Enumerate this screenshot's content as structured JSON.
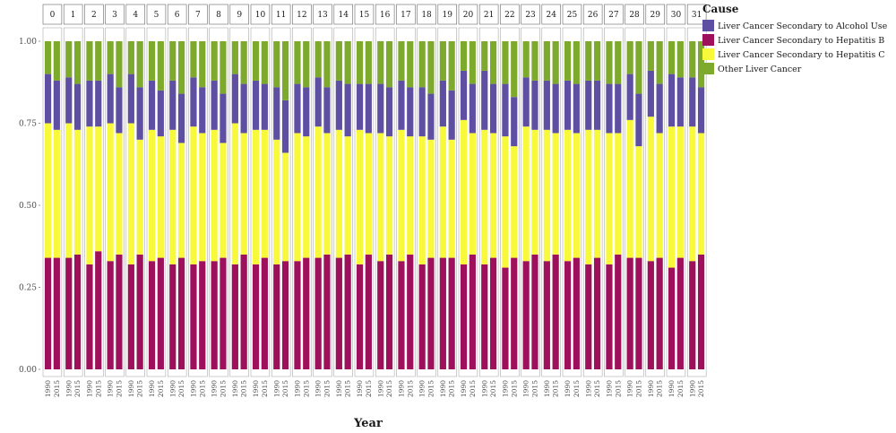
{
  "chart_data": {
    "type": "bar",
    "stacked": true,
    "ylim": [
      0,
      1
    ],
    "y_ticks": [
      "0.00",
      "0.25",
      "0.50",
      "0.75",
      "1.00"
    ],
    "xlabel": "Year",
    "ylabel": "",
    "x_categories": [
      "1990",
      "2015"
    ],
    "facets": [
      "0",
      "1",
      "2",
      "3",
      "4",
      "5",
      "6",
      "7",
      "8",
      "9",
      "10",
      "11",
      "12",
      "13",
      "14",
      "15",
      "16",
      "17",
      "18",
      "19",
      "20",
      "21",
      "22",
      "23",
      "24",
      "25",
      "26",
      "27",
      "28",
      "29",
      "30",
      "31"
    ],
    "legend": {
      "title": "Cause",
      "position": "top-right",
      "entries": [
        {
          "name": "Liver Cancer Secondary to Alcohol Use",
          "color": "#5e4fa2"
        },
        {
          "name": "Liver Cancer Secondary to Hepatitis B",
          "color": "#9e0f5c"
        },
        {
          "name": "Liver Cancer Secondary to Hepatitis C",
          "color": "#f9f93c"
        },
        {
          "name": "Other Liver Cancer",
          "color": "#7daa2d"
        }
      ]
    },
    "stack_order_bottom_to_top": [
      "Liver Cancer Secondary to Hepatitis B",
      "Liver Cancer Secondary to Hepatitis C",
      "Liver Cancer Secondary to Alcohol Use",
      "Other Liver Cancer"
    ],
    "series": [
      {
        "name": "Liver Cancer Secondary to Hepatitis B",
        "values": [
          [
            0.34,
            0.34
          ],
          [
            0.34,
            0.35
          ],
          [
            0.32,
            0.36
          ],
          [
            0.33,
            0.35
          ],
          [
            0.32,
            0.35
          ],
          [
            0.33,
            0.34
          ],
          [
            0.32,
            0.34
          ],
          [
            0.32,
            0.33
          ],
          [
            0.33,
            0.34
          ],
          [
            0.32,
            0.35
          ],
          [
            0.32,
            0.34
          ],
          [
            0.32,
            0.33
          ],
          [
            0.33,
            0.34
          ],
          [
            0.34,
            0.35
          ],
          [
            0.34,
            0.35
          ],
          [
            0.32,
            0.35
          ],
          [
            0.33,
            0.35
          ],
          [
            0.33,
            0.35
          ],
          [
            0.32,
            0.34
          ],
          [
            0.34,
            0.34
          ],
          [
            0.32,
            0.35
          ],
          [
            0.32,
            0.34
          ],
          [
            0.31,
            0.34
          ],
          [
            0.33,
            0.35
          ],
          [
            0.33,
            0.35
          ],
          [
            0.33,
            0.34
          ],
          [
            0.32,
            0.34
          ],
          [
            0.32,
            0.35
          ],
          [
            0.34,
            0.34
          ],
          [
            0.33,
            0.34
          ],
          [
            0.31,
            0.34
          ],
          [
            0.33,
            0.35
          ]
        ]
      },
      {
        "name": "Liver Cancer Secondary to Hepatitis C",
        "values": [
          [
            0.41,
            0.39
          ],
          [
            0.41,
            0.38
          ],
          [
            0.42,
            0.38
          ],
          [
            0.42,
            0.37
          ],
          [
            0.43,
            0.35
          ],
          [
            0.4,
            0.37
          ],
          [
            0.41,
            0.35
          ],
          [
            0.42,
            0.39
          ],
          [
            0.4,
            0.35
          ],
          [
            0.43,
            0.37
          ],
          [
            0.41,
            0.39
          ],
          [
            0.38,
            0.33
          ],
          [
            0.39,
            0.37
          ],
          [
            0.4,
            0.37
          ],
          [
            0.39,
            0.36
          ],
          [
            0.41,
            0.37
          ],
          [
            0.39,
            0.36
          ],
          [
            0.4,
            0.36
          ],
          [
            0.39,
            0.36
          ],
          [
            0.4,
            0.36
          ],
          [
            0.44,
            0.37
          ],
          [
            0.41,
            0.38
          ],
          [
            0.4,
            0.34
          ],
          [
            0.41,
            0.38
          ],
          [
            0.4,
            0.37
          ],
          [
            0.4,
            0.38
          ],
          [
            0.41,
            0.39
          ],
          [
            0.4,
            0.37
          ],
          [
            0.42,
            0.34
          ],
          [
            0.44,
            0.38
          ],
          [
            0.43,
            0.4
          ],
          [
            0.41,
            0.37
          ]
        ]
      },
      {
        "name": "Liver Cancer Secondary to Alcohol Use",
        "values": [
          [
            0.15,
            0.15
          ],
          [
            0.14,
            0.14
          ],
          [
            0.14,
            0.14
          ],
          [
            0.15,
            0.14
          ],
          [
            0.15,
            0.16
          ],
          [
            0.15,
            0.14
          ],
          [
            0.15,
            0.15
          ],
          [
            0.15,
            0.14
          ],
          [
            0.15,
            0.15
          ],
          [
            0.15,
            0.15
          ],
          [
            0.15,
            0.14
          ],
          [
            0.16,
            0.16
          ],
          [
            0.15,
            0.15
          ],
          [
            0.15,
            0.14
          ],
          [
            0.15,
            0.16
          ],
          [
            0.14,
            0.15
          ],
          [
            0.15,
            0.15
          ],
          [
            0.15,
            0.15
          ],
          [
            0.15,
            0.14
          ],
          [
            0.14,
            0.15
          ],
          [
            0.15,
            0.15
          ],
          [
            0.18,
            0.15
          ],
          [
            0.16,
            0.15
          ],
          [
            0.15,
            0.15
          ],
          [
            0.15,
            0.15
          ],
          [
            0.15,
            0.15
          ],
          [
            0.15,
            0.15
          ],
          [
            0.15,
            0.15
          ],
          [
            0.14,
            0.16
          ],
          [
            0.14,
            0.15
          ],
          [
            0.16,
            0.15
          ],
          [
            0.15,
            0.14
          ]
        ]
      },
      {
        "name": "Other Liver Cancer",
        "values": [
          [
            0.1,
            0.12
          ],
          [
            0.11,
            0.13
          ],
          [
            0.12,
            0.12
          ],
          [
            0.1,
            0.14
          ],
          [
            0.1,
            0.14
          ],
          [
            0.12,
            0.15
          ],
          [
            0.12,
            0.16
          ],
          [
            0.11,
            0.14
          ],
          [
            0.12,
            0.16
          ],
          [
            0.1,
            0.13
          ],
          [
            0.12,
            0.13
          ],
          [
            0.14,
            0.18
          ],
          [
            0.13,
            0.14
          ],
          [
            0.11,
            0.14
          ],
          [
            0.12,
            0.13
          ],
          [
            0.13,
            0.13
          ],
          [
            0.13,
            0.14
          ],
          [
            0.12,
            0.14
          ],
          [
            0.14,
            0.16
          ],
          [
            0.12,
            0.15
          ],
          [
            0.09,
            0.13
          ],
          [
            0.09,
            0.13
          ],
          [
            0.13,
            0.17
          ],
          [
            0.11,
            0.12
          ],
          [
            0.12,
            0.13
          ],
          [
            0.12,
            0.13
          ],
          [
            0.12,
            0.12
          ],
          [
            0.13,
            0.13
          ],
          [
            0.1,
            0.16
          ],
          [
            0.09,
            0.13
          ],
          [
            0.1,
            0.11
          ],
          [
            0.11,
            0.14
          ]
        ]
      }
    ]
  }
}
